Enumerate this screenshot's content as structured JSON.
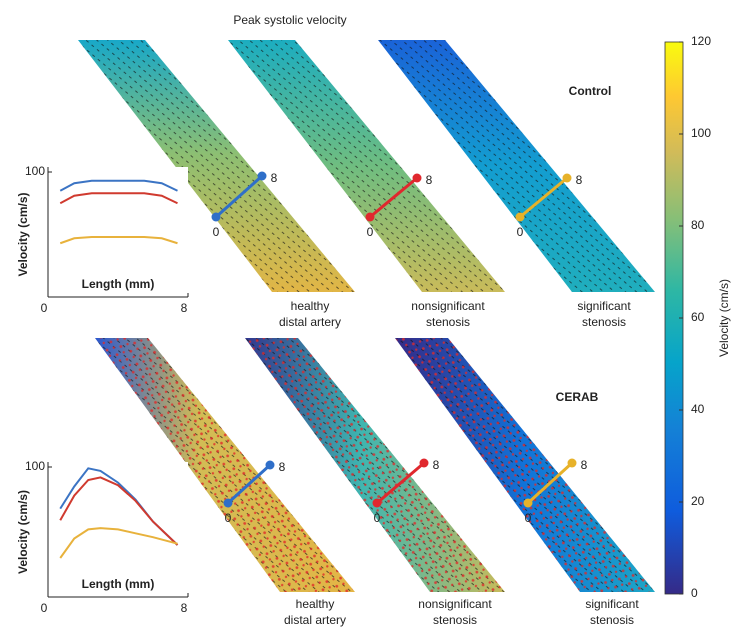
{
  "title": "Peak systolic velocity",
  "rows": [
    {
      "label": "Control",
      "panels": [
        {
          "label_lines": [
            "healthy",
            "distal artery"
          ],
          "start": "0",
          "end": "8"
        },
        {
          "label_lines": [
            "nonsignificant",
            "stenosis"
          ],
          "start": "0",
          "end": "8"
        },
        {
          "label_lines": [
            "significant",
            "stenosis"
          ],
          "start": "0",
          "end": "8"
        }
      ]
    },
    {
      "label": "CERAB",
      "panels": [
        {
          "label_lines": [
            "healthy",
            "distal artery"
          ],
          "start": "0",
          "end": "8"
        },
        {
          "label_lines": [
            "nonsignificant",
            "stenosis"
          ],
          "start": "0",
          "end": "8"
        },
        {
          "label_lines": [
            "significant",
            "stenosis"
          ],
          "start": "0",
          "end": "8"
        }
      ]
    }
  ],
  "chart_data": [
    {
      "type": "line",
      "xlabel": "Length (mm)",
      "ylabel": "Velocity (cm/s)",
      "x": [
        0.7,
        1.5,
        2.5,
        3.5,
        4.5,
        5.5,
        6.5,
        7.4
      ],
      "xlim": [
        0,
        8
      ],
      "xticks": [
        0,
        8
      ],
      "ylim": [
        0,
        100
      ],
      "yticks": [
        100
      ],
      "series": [
        {
          "color": "#3b74c4",
          "values": [
            85,
            91,
            93,
            93,
            93,
            93,
            91,
            85
          ]
        },
        {
          "color": "#d03a2f",
          "values": [
            75,
            81,
            83,
            83,
            83,
            83,
            81,
            75
          ]
        },
        {
          "color": "#e8b23c",
          "values": [
            43,
            47,
            48,
            48,
            48,
            48,
            47,
            43
          ]
        }
      ]
    },
    {
      "type": "line",
      "xlabel": "Length (mm)",
      "ylabel": "Velocity (cm/s)",
      "x": [
        0.7,
        1.5,
        2.3,
        3,
        4,
        5,
        6,
        7.4
      ],
      "xlim": [
        0,
        8
      ],
      "xticks": [
        0,
        8
      ],
      "ylim": [
        0,
        100
      ],
      "yticks": [
        100
      ],
      "series": [
        {
          "color": "#3b74c4",
          "values": [
            68,
            85,
            99,
            97,
            88,
            75,
            58,
            40
          ]
        },
        {
          "color": "#d03a2f",
          "values": [
            59,
            78,
            90,
            92,
            86,
            74,
            58,
            40
          ]
        },
        {
          "color": "#e8b23c",
          "values": [
            30,
            45,
            52,
            53,
            52,
            49,
            46,
            41
          ]
        }
      ]
    },
    {
      "type": "colorbar",
      "ylabel": "Velocity (cm/s)",
      "ylim": [
        0,
        120
      ],
      "yticks": [
        0,
        20,
        40,
        60,
        80,
        100,
        120
      ]
    }
  ]
}
